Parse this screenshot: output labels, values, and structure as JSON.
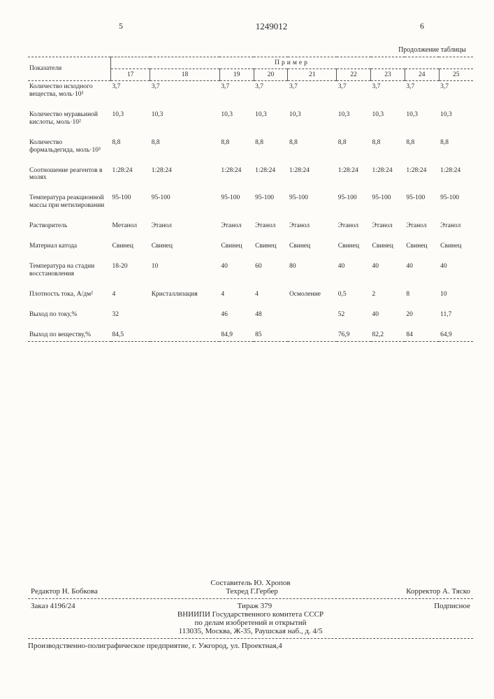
{
  "header": {
    "left_num": "5",
    "doc_number": "1249012",
    "right_num": "6",
    "continuation": "Продолжение таблицы"
  },
  "table": {
    "row_header_label": "Показатели",
    "group_header": "Пример",
    "col_numbers": [
      "17",
      "18",
      "19",
      "20",
      "21",
      "22",
      "23",
      "24",
      "25"
    ],
    "rows": [
      {
        "label": "Количество исходного вещества, моль·10³",
        "cells": [
          "3,7",
          "3,7",
          "3,7",
          "3,7",
          "3,7",
          "3,7",
          "3,7",
          "3,7",
          "3,7"
        ]
      },
      {
        "label": "Количество муравьиной кислоты, моль·10²",
        "cells": [
          "10,3",
          "10,3",
          "10,3",
          "10,3",
          "10,3",
          "10,3",
          "10,3",
          "10,3",
          "10,3"
        ]
      },
      {
        "label": "Количество формальдегида, моль·10³",
        "cells": [
          "8,8",
          "8,8",
          "8,8",
          "8,8",
          "8,8",
          "8,8",
          "8,8",
          "8,8",
          "8,8"
        ]
      },
      {
        "label": "Соотношение реагентов в молях",
        "cells": [
          "1:28:24",
          "1:28:24",
          "1:28:24",
          "1:28:24",
          "1:28:24",
          "1:28:24",
          "1:28:24",
          "1:28:24",
          "1:28:24"
        ]
      },
      {
        "label": "Температура реакционной массы при метилировании",
        "cells": [
          "95-100",
          "95-100",
          "95-100",
          "95-100",
          "95-100",
          "95-100",
          "95-100",
          "95-100",
          "95-100"
        ]
      },
      {
        "label": "Растворитель",
        "cells": [
          "Метанол",
          "Этанол",
          "Этанол",
          "Этанол",
          "Этанол",
          "Этанол",
          "Этанол",
          "Этанол",
          "Этанол"
        ]
      },
      {
        "label": "Материал катода",
        "cells": [
          "Свинец",
          "Свинец",
          "Свинец",
          "Свинец",
          "Свинец",
          "Свинец",
          "Свинец",
          "Свинец",
          "Свинец"
        ]
      },
      {
        "label": "Температура на стадии восстановления",
        "cells": [
          "18-20",
          "10",
          "40",
          "60",
          "80",
          "40",
          "40",
          "40",
          "40"
        ]
      },
      {
        "label": "Плотность тока, А/дм²",
        "cells": [
          "4",
          "Кристаллизация",
          "4",
          "4",
          "Осмоление",
          "0,5",
          "2",
          "8",
          "10"
        ]
      },
      {
        "label": "Выход по току,%",
        "cells": [
          "32",
          "",
          "46",
          "48",
          "",
          "52",
          "40",
          "20",
          "11,7"
        ]
      },
      {
        "label": "Выход по веществу,%",
        "cells": [
          "84,5",
          "",
          "84,9",
          "85",
          "",
          "76,9",
          "82,2",
          "84",
          "64,9"
        ]
      }
    ]
  },
  "footer": {
    "compiler": "Составитель Ю. Хропов",
    "editor": "Редактор Н. Бобкова",
    "tech": "Техред Г.Гербер",
    "corrector": "Корректор А. Тяско",
    "order": "Заказ 4196/24",
    "tirage": "Тираж 379",
    "sign": "Подписное",
    "org1": "ВНИИПИ Государственного комитета СССР",
    "org2": "по делам изобретений и открытий",
    "addr": "113035, Москва, Ж-35, Раушская наб., д. 4/5",
    "press": "Производственно-полиграфическое предприятие, г. Ужгород, ул. Проектная,4"
  }
}
